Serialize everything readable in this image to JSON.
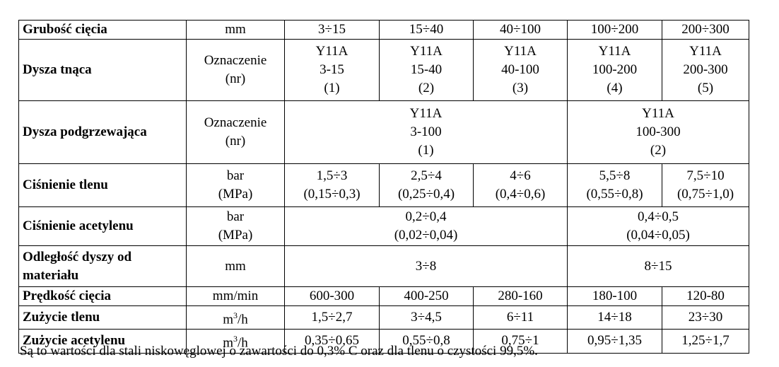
{
  "table": {
    "r1": {
      "label": "Grubość cięcia",
      "unit": "mm",
      "v1": "3÷15",
      "v2": "15÷40",
      "v3": "40÷100",
      "v4": "100÷200",
      "v5": "200÷300"
    },
    "r2": {
      "label": "Dysza tnąca",
      "unit1": "Oznaczenie",
      "unit2": "(nr)",
      "c1": [
        "Y11A",
        "3-15",
        "(1)"
      ],
      "c2": [
        "Y11A",
        "15-40",
        "(2)"
      ],
      "c3": [
        "Y11A",
        "40-100",
        "(3)"
      ],
      "c4": [
        "Y11A",
        "100-200",
        "(4)"
      ],
      "c5": [
        "Y11A",
        "200-300",
        "(5)"
      ]
    },
    "r3": {
      "label": "Dysza podgrzewająca",
      "unit1": "Oznaczenie",
      "unit2": "(nr)",
      "a": [
        "Y11A",
        "3-100",
        "(1)"
      ],
      "b": [
        "Y11A",
        "100-300",
        "(2)"
      ]
    },
    "r4": {
      "label": "Ciśnienie tlenu",
      "unit1": "bar",
      "unit2": "(MPa)",
      "c1": [
        "1,5÷3",
        "(0,15÷0,3)"
      ],
      "c2": [
        "2,5÷4",
        "(0,25÷0,4)"
      ],
      "c3": [
        "4÷6",
        "(0,4÷0,6)"
      ],
      "c4": [
        "5,5÷8",
        "(0,55÷0,8)"
      ],
      "c5": [
        "7,5÷10",
        "(0,75÷1,0)"
      ]
    },
    "r5": {
      "label": "Ciśnienie acetylenu",
      "unit1": "bar",
      "unit2": "(MPa)",
      "a": [
        "0,2÷0,4",
        "(0,02÷0,04)"
      ],
      "b": [
        "0,4÷0,5",
        "(0,04÷0,05)"
      ]
    },
    "r6": {
      "label1": "Odległość dyszy od",
      "label2": "materiału",
      "unit": "mm",
      "a": "3÷8",
      "b": "8÷15"
    },
    "r7": {
      "label": "Prędkość cięcia",
      "unit": "mm/min",
      "v1": "600-300",
      "v2": "400-250",
      "v3": "280-160",
      "v4": "180-100",
      "v5": "120-80"
    },
    "r8": {
      "label": "Zużycie tlenu",
      "unit_base": "m",
      "unit_sup": "3",
      "unit_tail": "/h",
      "v1": "1,5÷2,7",
      "v2": "3÷4,5",
      "v3": "6÷11",
      "v4": "14÷18",
      "v5": "23÷30"
    },
    "r9": {
      "label": "Zużycie acetylenu",
      "unit_base": "m",
      "unit_sup": "3",
      "unit_tail": "/h",
      "v1": "0,35÷0,65",
      "v2": "0,55÷0,8",
      "v3": "0,75÷1",
      "v4": "0,95÷1,35",
      "v5": "1,25÷1,7"
    }
  },
  "note": "Są to wartości dla stali niskowęglowej o zawartości do 0,3% C oraz dla tlenu o czystości 99,5%."
}
